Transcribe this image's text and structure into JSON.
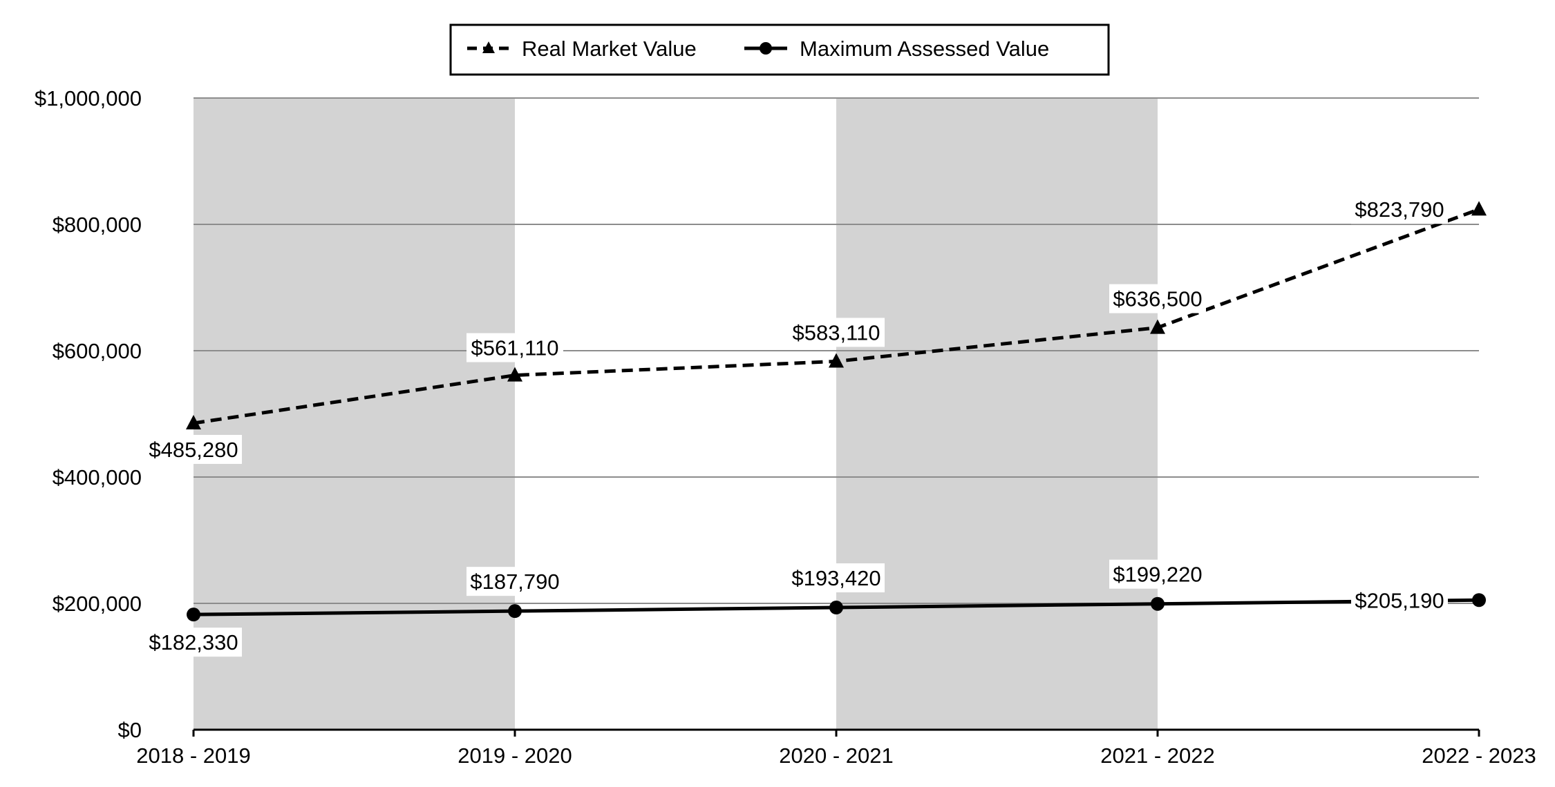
{
  "chart_data": {
    "type": "line",
    "categories": [
      "2018 - 2019",
      "2019 - 2020",
      "2020 - 2021",
      "2021 - 2022",
      "2022 - 2023"
    ],
    "series": [
      {
        "name": "Real Market Value",
        "values": [
          485280,
          561110,
          583110,
          636500,
          823790
        ],
        "labels": [
          "$485,280",
          "$561,110",
          "$583,110",
          "$636,500",
          "$823,790"
        ],
        "line_style": "dashed",
        "marker": "triangle",
        "color": "#000000"
      },
      {
        "name": "Maximum Assessed Value",
        "values": [
          182330,
          187790,
          193420,
          199220,
          205190
        ],
        "labels": [
          "$182,330",
          "$187,790",
          "$193,420",
          "$199,220",
          "$205,190"
        ],
        "line_style": "solid",
        "marker": "circle",
        "color": "#000000"
      }
    ],
    "y_ticks": [
      0,
      200000,
      400000,
      600000,
      800000,
      1000000
    ],
    "y_tick_labels": [
      "$0",
      "$200,000",
      "$400,000",
      "$600,000",
      "$800,000",
      "$1,000,000"
    ],
    "ylim": [
      0,
      1000000
    ],
    "grid": true,
    "legend_position": "top-center",
    "shaded_bands": [
      "2018 - 2019",
      "2020 - 2021"
    ],
    "colors": {
      "band": "#d3d3d3",
      "gridline": "#8c8c8c",
      "axis": "#000000"
    }
  }
}
